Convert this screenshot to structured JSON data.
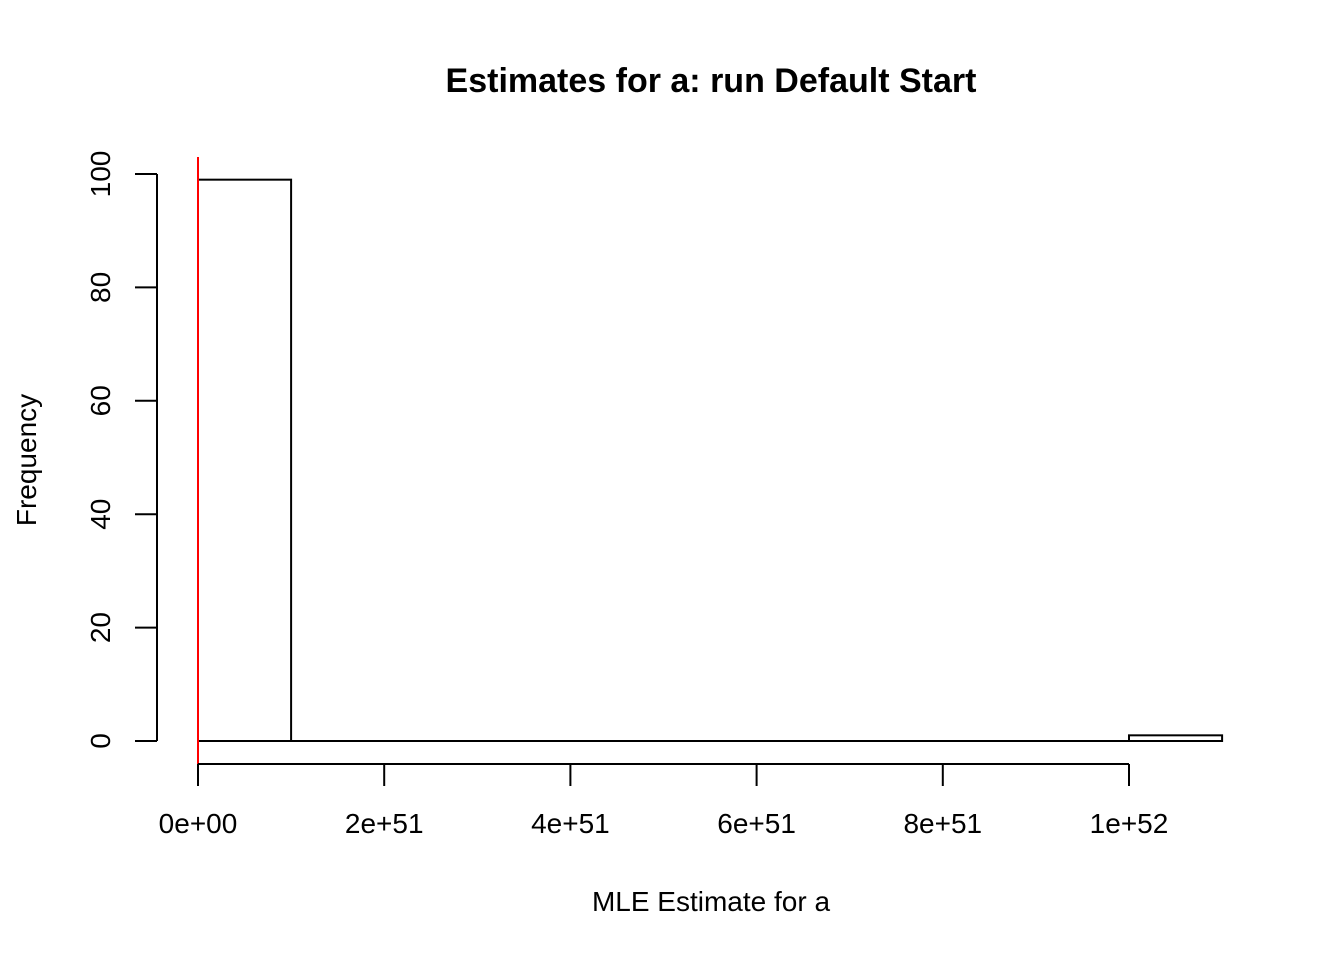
{
  "chart_data": {
    "type": "histogram",
    "title": "Estimates for a: run Default Start",
    "xlabel": "MLE Estimate for a",
    "ylabel": "Frequency",
    "xlim": [
      0,
      1.1e+52
    ],
    "ylim": [
      0,
      100
    ],
    "x_ticks": [
      0,
      2e+51,
      4e+51,
      6e+51,
      8e+51,
      1e+52
    ],
    "x_tick_labels": [
      "0e+00",
      "2e+51",
      "4e+51",
      "6e+51",
      "8e+51",
      "1e+52"
    ],
    "y_ticks": [
      0,
      20,
      40,
      60,
      80,
      100
    ],
    "y_tick_labels": [
      "0",
      "20",
      "40",
      "60",
      "80",
      "100"
    ],
    "bins": [
      {
        "start": 0,
        "end": 1e+51,
        "count": 99
      },
      {
        "start": 1e+51,
        "end": 2e+51,
        "count": 0
      },
      {
        "start": 2e+51,
        "end": 3e+51,
        "count": 0
      },
      {
        "start": 3e+51,
        "end": 4e+51,
        "count": 0
      },
      {
        "start": 4e+51,
        "end": 5e+51,
        "count": 0
      },
      {
        "start": 5e+51,
        "end": 6e+51,
        "count": 0
      },
      {
        "start": 6e+51,
        "end": 7e+51,
        "count": 0
      },
      {
        "start": 7e+51,
        "end": 8e+51,
        "count": 0
      },
      {
        "start": 8e+51,
        "end": 9e+51,
        "count": 0
      },
      {
        "start": 9e+51,
        "end": 1e+52,
        "count": 0
      },
      {
        "start": 1e+52,
        "end": 1.1e+52,
        "count": 1
      }
    ],
    "reference_line": {
      "x": 0,
      "color": "#ff0000"
    },
    "grid": false,
    "legend": false
  }
}
